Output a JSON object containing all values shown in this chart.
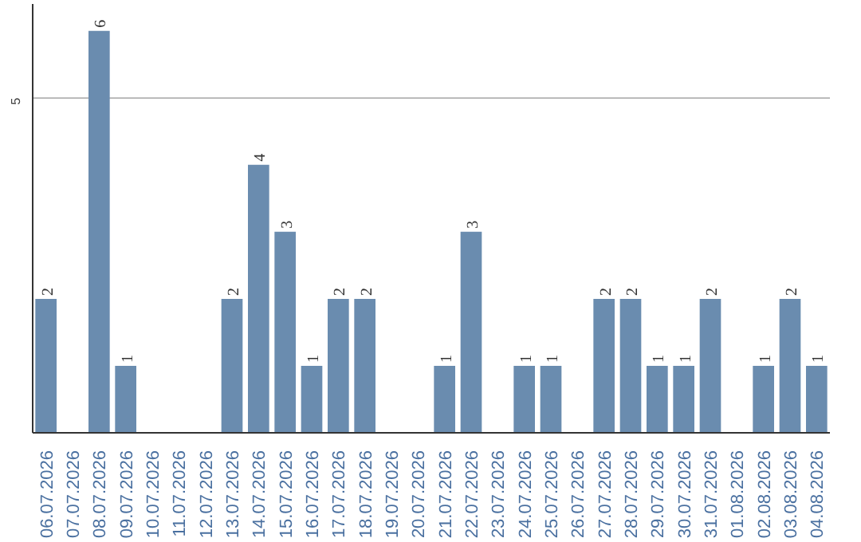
{
  "chart_data": {
    "type": "bar",
    "categories": [
      "06.07.2026",
      "07.07.2026",
      "08.07.2026",
      "09.07.2026",
      "10.07.2026",
      "11.07.2026",
      "12.07.2026",
      "13.07.2026",
      "14.07.2026",
      "15.07.2026",
      "16.07.2026",
      "17.07.2026",
      "18.07.2026",
      "19.07.2026",
      "20.07.2026",
      "21.07.2026",
      "22.07.2026",
      "23.07.2026",
      "24.07.2026",
      "25.07.2026",
      "26.07.2026",
      "27.07.2026",
      "28.07.2026",
      "29.07.2026",
      "30.07.2026",
      "31.07.2026",
      "01.08.2026",
      "02.08.2026",
      "03.08.2026",
      "04.08.2026"
    ],
    "values": [
      2,
      0,
      6,
      1,
      0,
      0,
      0,
      2,
      4,
      3,
      1,
      2,
      2,
      0,
      0,
      1,
      3,
      0,
      1,
      1,
      0,
      2,
      2,
      1,
      1,
      2,
      0,
      1,
      2,
      1
    ],
    "value_labels": [
      "2",
      null,
      "6",
      "1",
      null,
      null,
      null,
      "2",
      "4",
      "3",
      "1",
      "2",
      "2",
      null,
      null,
      "1",
      "3",
      null,
      "1",
      "1",
      null,
      "2",
      "2",
      "1",
      "1",
      "2",
      null,
      "1",
      "2",
      "1"
    ],
    "color": "#6a8caf",
    "ylim": [
      0,
      6.4
    ],
    "yticks": [
      5
    ],
    "grid": "y"
  }
}
